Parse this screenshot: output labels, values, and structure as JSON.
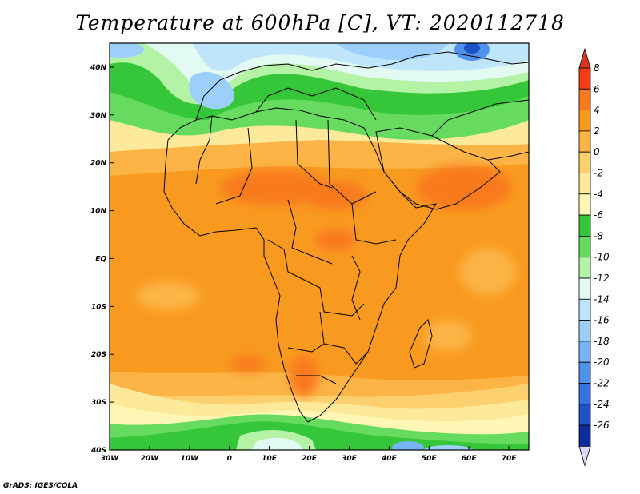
{
  "title": "Temperature at 600hPa [C], VT: 2020112718",
  "credit": "GrADS: IGES/COLA",
  "map": {
    "lon_range": [
      -30,
      75
    ],
    "lat_range": [
      -40,
      45
    ],
    "lon_ticks": [
      {
        "value": -30,
        "label": "30W"
      },
      {
        "value": -20,
        "label": "20W"
      },
      {
        "value": -10,
        "label": "10W"
      },
      {
        "value": 0,
        "label": "0"
      },
      {
        "value": 10,
        "label": "10E"
      },
      {
        "value": 20,
        "label": "20E"
      },
      {
        "value": 30,
        "label": "30E"
      },
      {
        "value": 40,
        "label": "40E"
      },
      {
        "value": 50,
        "label": "50E"
      },
      {
        "value": 60,
        "label": "60E"
      },
      {
        "value": 70,
        "label": "70E"
      }
    ],
    "lat_ticks": [
      {
        "value": 40,
        "label": "40N"
      },
      {
        "value": 30,
        "label": "30N"
      },
      {
        "value": 20,
        "label": "20N"
      },
      {
        "value": 10,
        "label": "10N"
      },
      {
        "value": 0,
        "label": "EQ"
      },
      {
        "value": -10,
        "label": "10S"
      },
      {
        "value": -20,
        "label": "20S"
      },
      {
        "value": -30,
        "label": "30S"
      },
      {
        "value": -40,
        "label": "40S"
      }
    ]
  },
  "colorbar": {
    "levels": [
      {
        "label": "8",
        "color": "#f63c16"
      },
      {
        "label": "6",
        "color": "#f87a1f"
      },
      {
        "label": "4",
        "color": "#f99a20"
      },
      {
        "label": "2",
        "color": "#fbb445"
      },
      {
        "label": "0",
        "color": "#fcd06e"
      },
      {
        "label": "-2",
        "color": "#fde99a"
      },
      {
        "label": "-4",
        "color": "#fdf6b5"
      },
      {
        "label": "-6",
        "color": "#35c639"
      },
      {
        "label": "-8",
        "color": "#67db60"
      },
      {
        "label": "-10",
        "color": "#b4f2a5"
      },
      {
        "label": "-12",
        "color": "#e3faf2"
      },
      {
        "label": "-14",
        "color": "#bfe5fb"
      },
      {
        "label": "-16",
        "color": "#9ccffa"
      },
      {
        "label": "-18",
        "color": "#75b4f4"
      },
      {
        "label": "-20",
        "color": "#4f92ea"
      },
      {
        "label": "-22",
        "color": "#3473e0"
      },
      {
        "label": "-24",
        "color": "#1e53c6"
      },
      {
        "label": "-26",
        "color": "#0d2d9e"
      }
    ],
    "top_color": "#d9361f",
    "bottom_color": "#d8d8f8"
  }
}
